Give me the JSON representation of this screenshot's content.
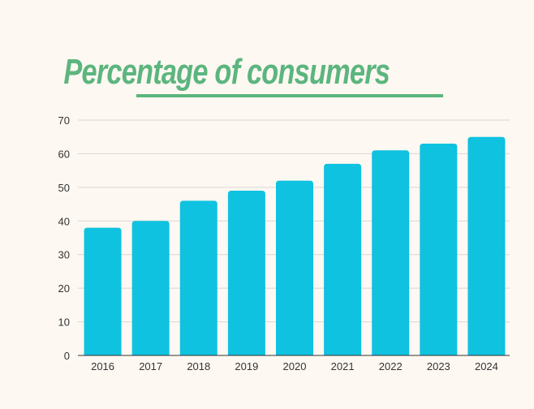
{
  "chart_data": {
    "type": "bar",
    "title": "Percentage of consumers",
    "categories": [
      "2016",
      "2017",
      "2018",
      "2019",
      "2020",
      "2021",
      "2022",
      "2023",
      "2024"
    ],
    "values": [
      38,
      40,
      46,
      49,
      52,
      57,
      61,
      63,
      65
    ],
    "xlabel": "",
    "ylabel": "",
    "ylim": [
      0,
      70
    ],
    "yticks": [
      0,
      10,
      20,
      30,
      40,
      50,
      60,
      70
    ],
    "grid": true,
    "legend": "none",
    "colors": {
      "bar": "#0fc2e0",
      "title": "#5cb57e",
      "grid": "#d9d6d1",
      "axis": "#333333"
    }
  }
}
